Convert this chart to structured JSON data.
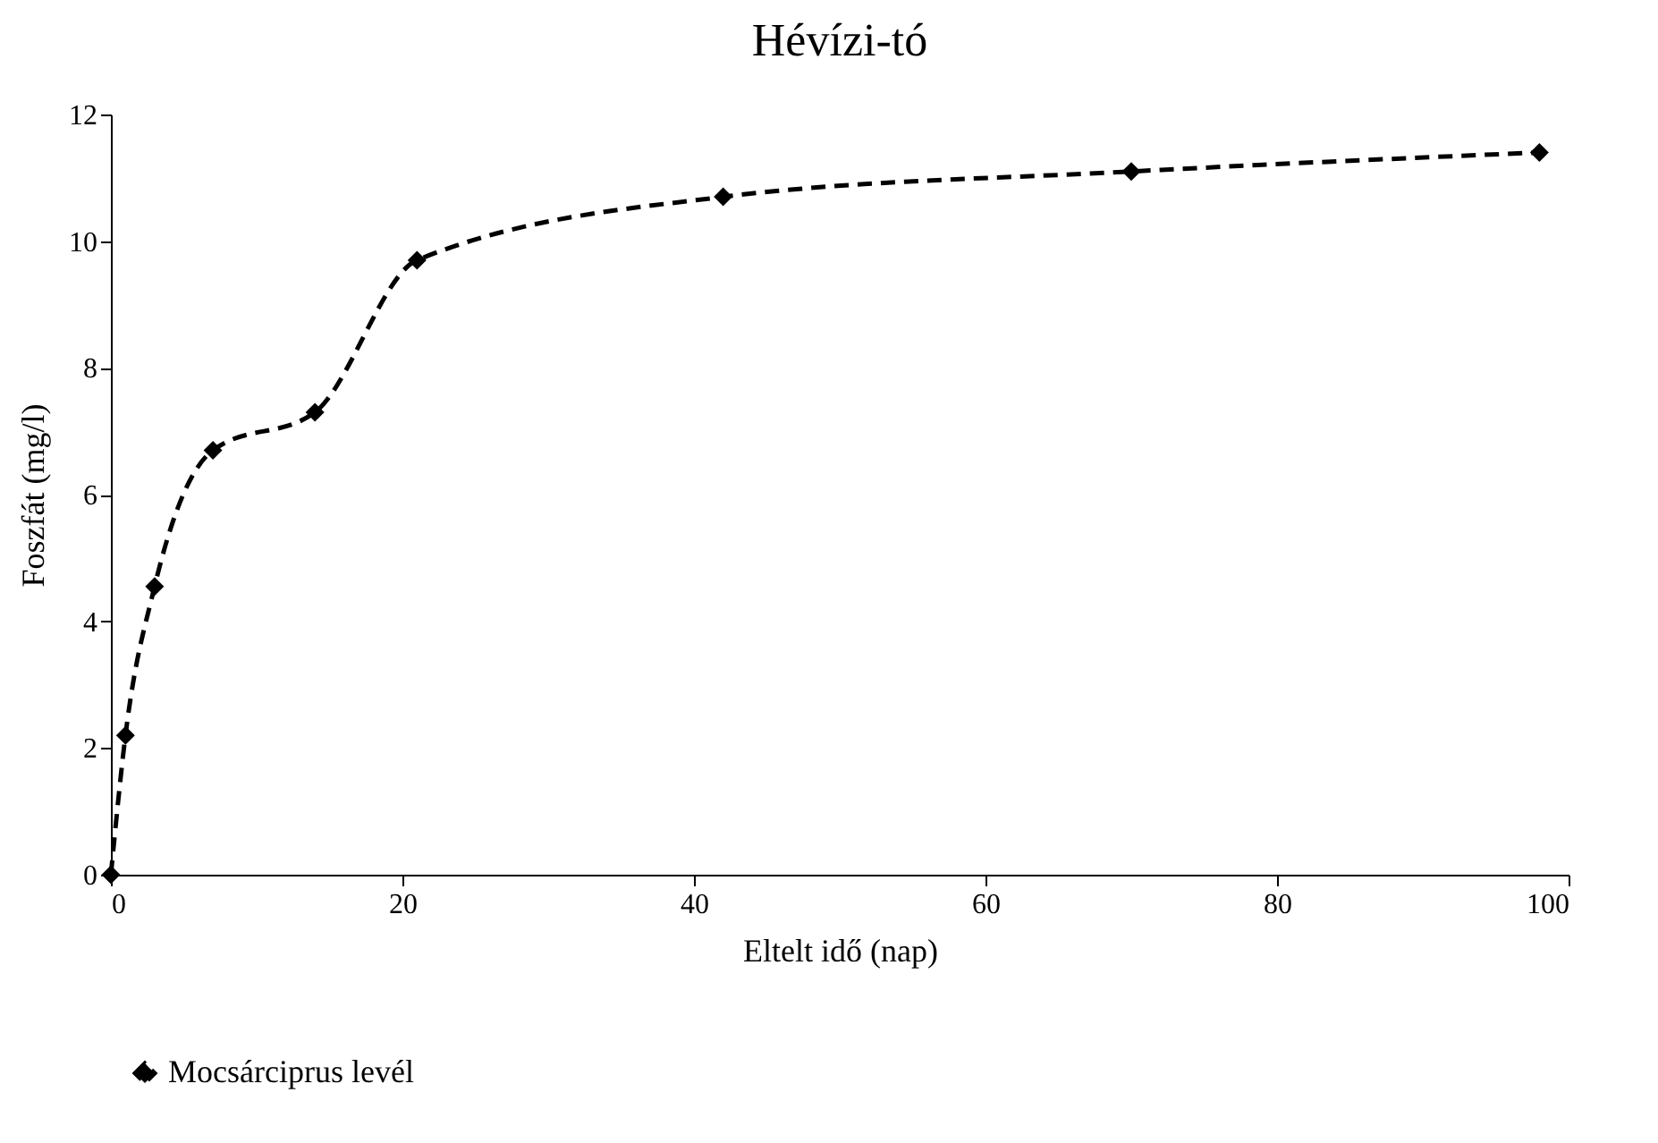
{
  "chart_data": {
    "type": "line",
    "title": "Hévízi-tó",
    "xlabel": "Eltelt idő (nap)",
    "ylabel": "Foszfát (mg/l)",
    "x": [
      0,
      1,
      3,
      7,
      14,
      21,
      42,
      70,
      98
    ],
    "series": [
      {
        "name": "Mocsárciprus levél",
        "color": "#000000",
        "values": [
          0,
          2.2,
          4.55,
          6.7,
          7.3,
          9.7,
          10.7,
          11.1,
          11.4
        ]
      }
    ],
    "xlim": [
      0,
      100
    ],
    "xticks": [
      0,
      20,
      40,
      60,
      80,
      100
    ],
    "ylim": [
      0,
      12
    ],
    "yticks": [
      0,
      2,
      4,
      6,
      8,
      10,
      12
    ],
    "grid": false,
    "legend": "bottom",
    "marker": "diamond",
    "line_style": "dashed"
  }
}
